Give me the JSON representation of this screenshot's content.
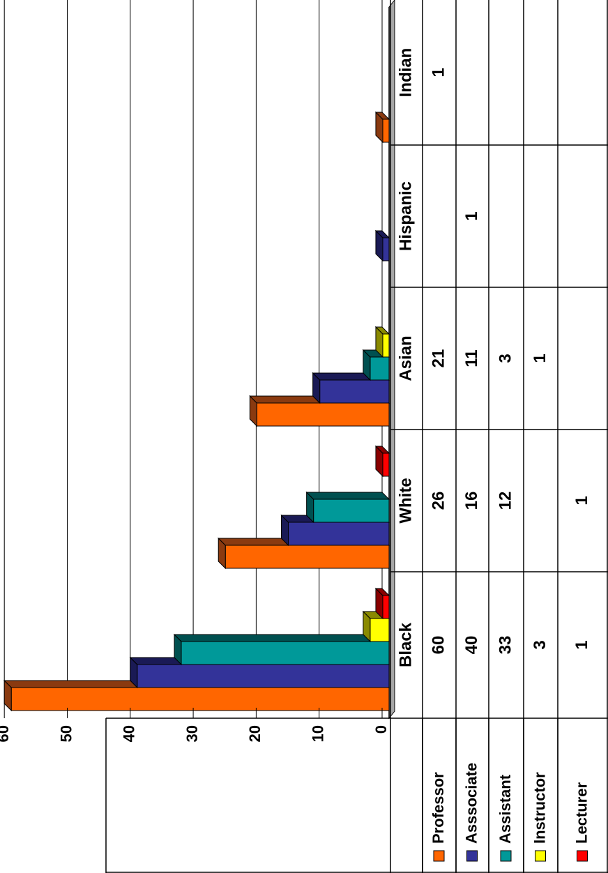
{
  "chart_data": {
    "type": "bar",
    "orientation": "horizontal",
    "three_d": true,
    "data_table": true,
    "categories": [
      "Black",
      "White",
      "Asian",
      "Hispanic",
      "Indian"
    ],
    "series": [
      {
        "name": "Professor",
        "values": [
          60,
          26,
          21,
          null,
          1
        ]
      },
      {
        "name": "Asssociate",
        "values": [
          40,
          16,
          11,
          1,
          null
        ]
      },
      {
        "name": "Assistant",
        "values": [
          33,
          12,
          3,
          null,
          null
        ]
      },
      {
        "name": "Instructor",
        "values": [
          3,
          null,
          1,
          null,
          null
        ]
      },
      {
        "name": "Lecturer",
        "values": [
          1,
          1,
          null,
          null,
          null
        ]
      }
    ],
    "ticks": [
      "0",
      "10",
      "20",
      "30",
      "40",
      "50",
      "60"
    ],
    "xlim": [
      0,
      60
    ],
    "gridlines": true,
    "legend": "in-table"
  },
  "colors": {
    "series": [
      "#FF6600",
      "#333399",
      "#009999",
      "#FFFF00",
      "#FF0000"
    ],
    "series_top": [
      "#8A3A10",
      "#1A1A55",
      "#005050",
      "#8A8A00",
      "#8A0000"
    ],
    "floor": "#A6A6A6",
    "grid": "#000000"
  }
}
